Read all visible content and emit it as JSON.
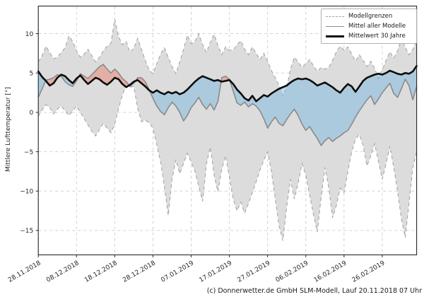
{
  "figure": {
    "ylabel": "Mittlere Lufttemperatur [°]",
    "caption": "(c) Donnerwetter.de GmbH SLM-Modell, Lauf 20.11.2018 07 Uhr"
  },
  "legend": {
    "items": [
      {
        "label": "Modellgrenzen",
        "style": "dashed",
        "color": "#a6a6a6"
      },
      {
        "label": "Mittel aller Modelle",
        "style": "solid",
        "color": "#8a8a8a"
      },
      {
        "label": "Mittelwert 30 Jahre",
        "style": "solid-thick",
        "color": "#0d0d0d"
      }
    ]
  },
  "chart_data": {
    "type": "line",
    "title": "",
    "xlabel": "",
    "ylabel": "Mittlere Lufttemperatur [°]",
    "grid": true,
    "legend_position": "upper right",
    "x_unit": "days since 28.11.2018 (daily values)",
    "x_range_days": [
      0,
      99
    ],
    "ylim": [
      -18.1,
      13.5
    ],
    "y_ticks": [
      10,
      5,
      0,
      -5,
      -10,
      -15
    ],
    "x_tick_days": [
      0,
      10,
      20,
      30,
      40,
      50,
      60,
      70,
      80,
      90
    ],
    "x_tick_labels": [
      "28.11.2018",
      "08.12.2018",
      "18.12.2018",
      "28.12.2018",
      "07.01.2019",
      "17.01.2019",
      "27.01.2019",
      "06.02.2019",
      "16.02.2019",
      "26.02.2019"
    ],
    "colors": {
      "band_fill": "#dcdcdc",
      "band_edge": "#a6a6a6",
      "grid": "#cccccc",
      "model_mean_line": "#8a8a8a",
      "mean30_line": "#0d0d0d",
      "warm_fill": "rgba(235,120,95,0.45)",
      "cold_fill": "rgba(110,180,225,0.45)",
      "spine": "#262626",
      "tick_label": "#262626"
    },
    "series": [
      {
        "key": "upper",
        "name": "Modellgrenzen (obere Grenze)",
        "values": [
          6.4,
          7.2,
          8.4,
          7.6,
          6.8,
          7.0,
          7.6,
          8.2,
          9.7,
          9.0,
          7.8,
          7.0,
          7.4,
          8.0,
          7.2,
          6.4,
          7.0,
          7.8,
          8.4,
          8.8,
          11.8,
          9.6,
          8.6,
          9.0,
          7.6,
          8.2,
          9.4,
          8.0,
          6.6,
          5.4,
          4.9,
          6.2,
          7.4,
          8.2,
          7.0,
          5.8,
          4.9,
          6.4,
          8.0,
          9.8,
          8.7,
          9.0,
          10.0,
          8.6,
          7.6,
          8.9,
          9.9,
          8.5,
          7.3,
          8.3,
          7.9,
          7.9,
          8.6,
          9.1,
          8.0,
          7.3,
          8.3,
          7.5,
          6.7,
          7.5,
          6.5,
          5.3,
          4.4,
          3.4,
          2.1,
          3.2,
          5.5,
          7.0,
          6.4,
          5.7,
          6.2,
          6.7,
          5.9,
          5.2,
          5.7,
          5.5,
          5.7,
          6.6,
          7.7,
          8.4,
          7.9,
          8.3,
          7.4,
          6.5,
          7.3,
          6.6,
          5.8,
          6.5,
          5.6,
          4.3,
          5.4,
          6.6,
          7.7,
          6.9,
          7.8,
          9.4,
          8.3,
          7.3,
          8.0,
          9.1
        ]
      },
      {
        "key": "lower",
        "name": "Modellgrenzen (untere Grenze)",
        "values": [
          -0.5,
          0.3,
          1.0,
          0.6,
          -0.2,
          0.4,
          0.8,
          0.2,
          -0.4,
          0.2,
          0.8,
          0.0,
          -0.8,
          -1.6,
          -2.4,
          -3.0,
          -2.2,
          -1.4,
          -2.0,
          -2.6,
          -1.5,
          0.5,
          2.2,
          3.4,
          3.2,
          3.3,
          0.5,
          -1.2,
          -1.0,
          -1.3,
          -2.0,
          -4.1,
          -6.3,
          -9.5,
          -13.1,
          -8.5,
          -6.0,
          -7.8,
          -6.5,
          -5.2,
          -6.3,
          -7.5,
          -9.4,
          -11.3,
          -6.5,
          -4.4,
          -8.0,
          -10.1,
          -7.2,
          -5.5,
          -8.2,
          -11.0,
          -12.5,
          -11.4,
          -12.8,
          -11.6,
          -10.2,
          -8.8,
          -7.3,
          -6.1,
          -5.0,
          -7.5,
          -11.0,
          -14.4,
          -16.3,
          -12.0,
          -8.5,
          -11.0,
          -9.0,
          -6.5,
          -8.0,
          -10.5,
          -13.0,
          -15.2,
          -10.8,
          -7.0,
          -9.5,
          -13.4,
          -11.8,
          -9.6,
          -10.2,
          -7.5,
          -5.0,
          -3.4,
          -2.8,
          -4.2,
          -6.8,
          -5.5,
          -4.0,
          -6.2,
          -8.5,
          -6.5,
          -4.3,
          -7.0,
          -10.0,
          -13.5,
          -15.9,
          -11.5,
          -7.0,
          -5.0
        ]
      },
      {
        "key": "mean",
        "name": "Mittel aller Modelle",
        "values": [
          1.9,
          3.0,
          4.1,
          4.2,
          4.4,
          4.8,
          4.6,
          3.9,
          3.5,
          3.3,
          4.0,
          4.9,
          4.6,
          4.3,
          4.8,
          5.3,
          5.8,
          6.1,
          5.5,
          5.0,
          5.5,
          5.0,
          4.3,
          3.9,
          3.3,
          3.7,
          4.4,
          4.4,
          3.9,
          2.9,
          1.8,
          0.8,
          0.1,
          -0.3,
          0.6,
          1.3,
          0.8,
          0.0,
          -1.1,
          -0.4,
          0.6,
          1.2,
          1.9,
          1.0,
          0.4,
          1.1,
          0.3,
          1.4,
          4.4,
          4.6,
          4.2,
          2.7,
          1.2,
          0.9,
          1.3,
          0.7,
          1.1,
          0.8,
          0.2,
          -0.8,
          -2.0,
          -1.2,
          -0.6,
          -1.4,
          -1.7,
          -0.9,
          -0.2,
          0.4,
          -0.4,
          -1.5,
          -2.3,
          -1.8,
          -2.6,
          -3.3,
          -4.2,
          -3.6,
          -3.2,
          -3.7,
          -3.3,
          -3.0,
          -2.6,
          -2.3,
          -1.5,
          -0.6,
          0.2,
          0.9,
          1.6,
          2.1,
          1.0,
          1.7,
          2.5,
          3.1,
          3.7,
          2.4,
          1.9,
          3.0,
          4.2,
          3.4,
          1.6,
          3.3
        ]
      },
      {
        "key": "mean30",
        "name": "Mittelwert 30 Jahre",
        "values": [
          5.2,
          4.5,
          4.0,
          3.4,
          3.7,
          4.4,
          4.8,
          4.6,
          4.1,
          3.7,
          4.3,
          4.7,
          4.1,
          3.6,
          4.0,
          4.4,
          4.2,
          3.8,
          3.5,
          3.9,
          4.4,
          4.2,
          3.6,
          3.2,
          3.5,
          3.9,
          4.1,
          3.7,
          3.3,
          2.8,
          2.5,
          2.8,
          2.5,
          2.3,
          2.6,
          2.4,
          2.6,
          2.3,
          2.5,
          2.9,
          3.4,
          3.9,
          4.3,
          4.6,
          4.4,
          4.2,
          4.0,
          4.1,
          3.9,
          4.0,
          4.1,
          3.6,
          2.9,
          2.4,
          1.8,
          1.5,
          2.1,
          1.4,
          1.8,
          2.2,
          2.0,
          2.4,
          2.7,
          3.0,
          3.2,
          3.4,
          3.8,
          4.1,
          4.3,
          4.2,
          4.3,
          4.1,
          3.8,
          3.4,
          3.6,
          3.8,
          3.5,
          3.2,
          2.8,
          2.5,
          3.1,
          3.6,
          3.3,
          2.6,
          3.3,
          4.0,
          4.4,
          4.6,
          4.8,
          4.9,
          4.8,
          5.0,
          5.3,
          5.1,
          4.9,
          4.8,
          5.0,
          4.9,
          5.2,
          5.9
        ]
      }
    ],
    "anomaly_fills": {
      "warm": "Mittel aller Modelle oberhalb Mittelwert 30 Jahre (rot)",
      "cold": "Mittel aller Modelle unterhalb Mittelwert 30 Jahre (blau)"
    }
  }
}
